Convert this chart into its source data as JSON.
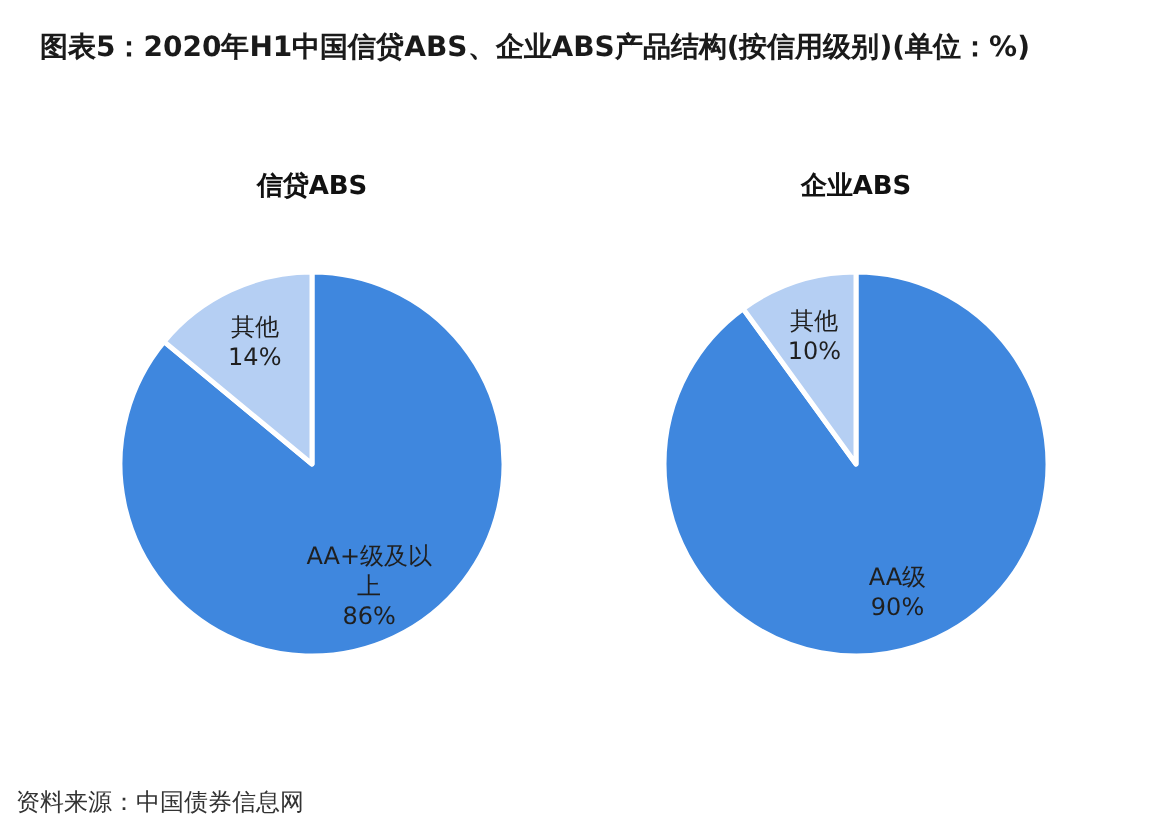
{
  "chart_data": [
    {
      "type": "other",
      "title": "图表5：2020年H1中国信贷ABS、企业ABS产品结构(按信用级别)(单位：%)",
      "annotations": [
        "资料来源：中国债券信息网"
      ]
    },
    {
      "type": "pie",
      "title": "信贷ABS",
      "categories": [
        "AA+级及以上",
        "其他"
      ],
      "values": [
        86,
        14
      ],
      "colors": [
        "#3f87de",
        "#b5cff3"
      ],
      "value_labels": [
        "86%",
        "14%"
      ]
    },
    {
      "type": "pie",
      "title": "企业ABS",
      "categories": [
        "AA级",
        "其他"
      ],
      "values": [
        90,
        10
      ],
      "colors": [
        "#3f87de",
        "#b5cff3"
      ],
      "value_labels": [
        "90%",
        "10%"
      ]
    }
  ]
}
